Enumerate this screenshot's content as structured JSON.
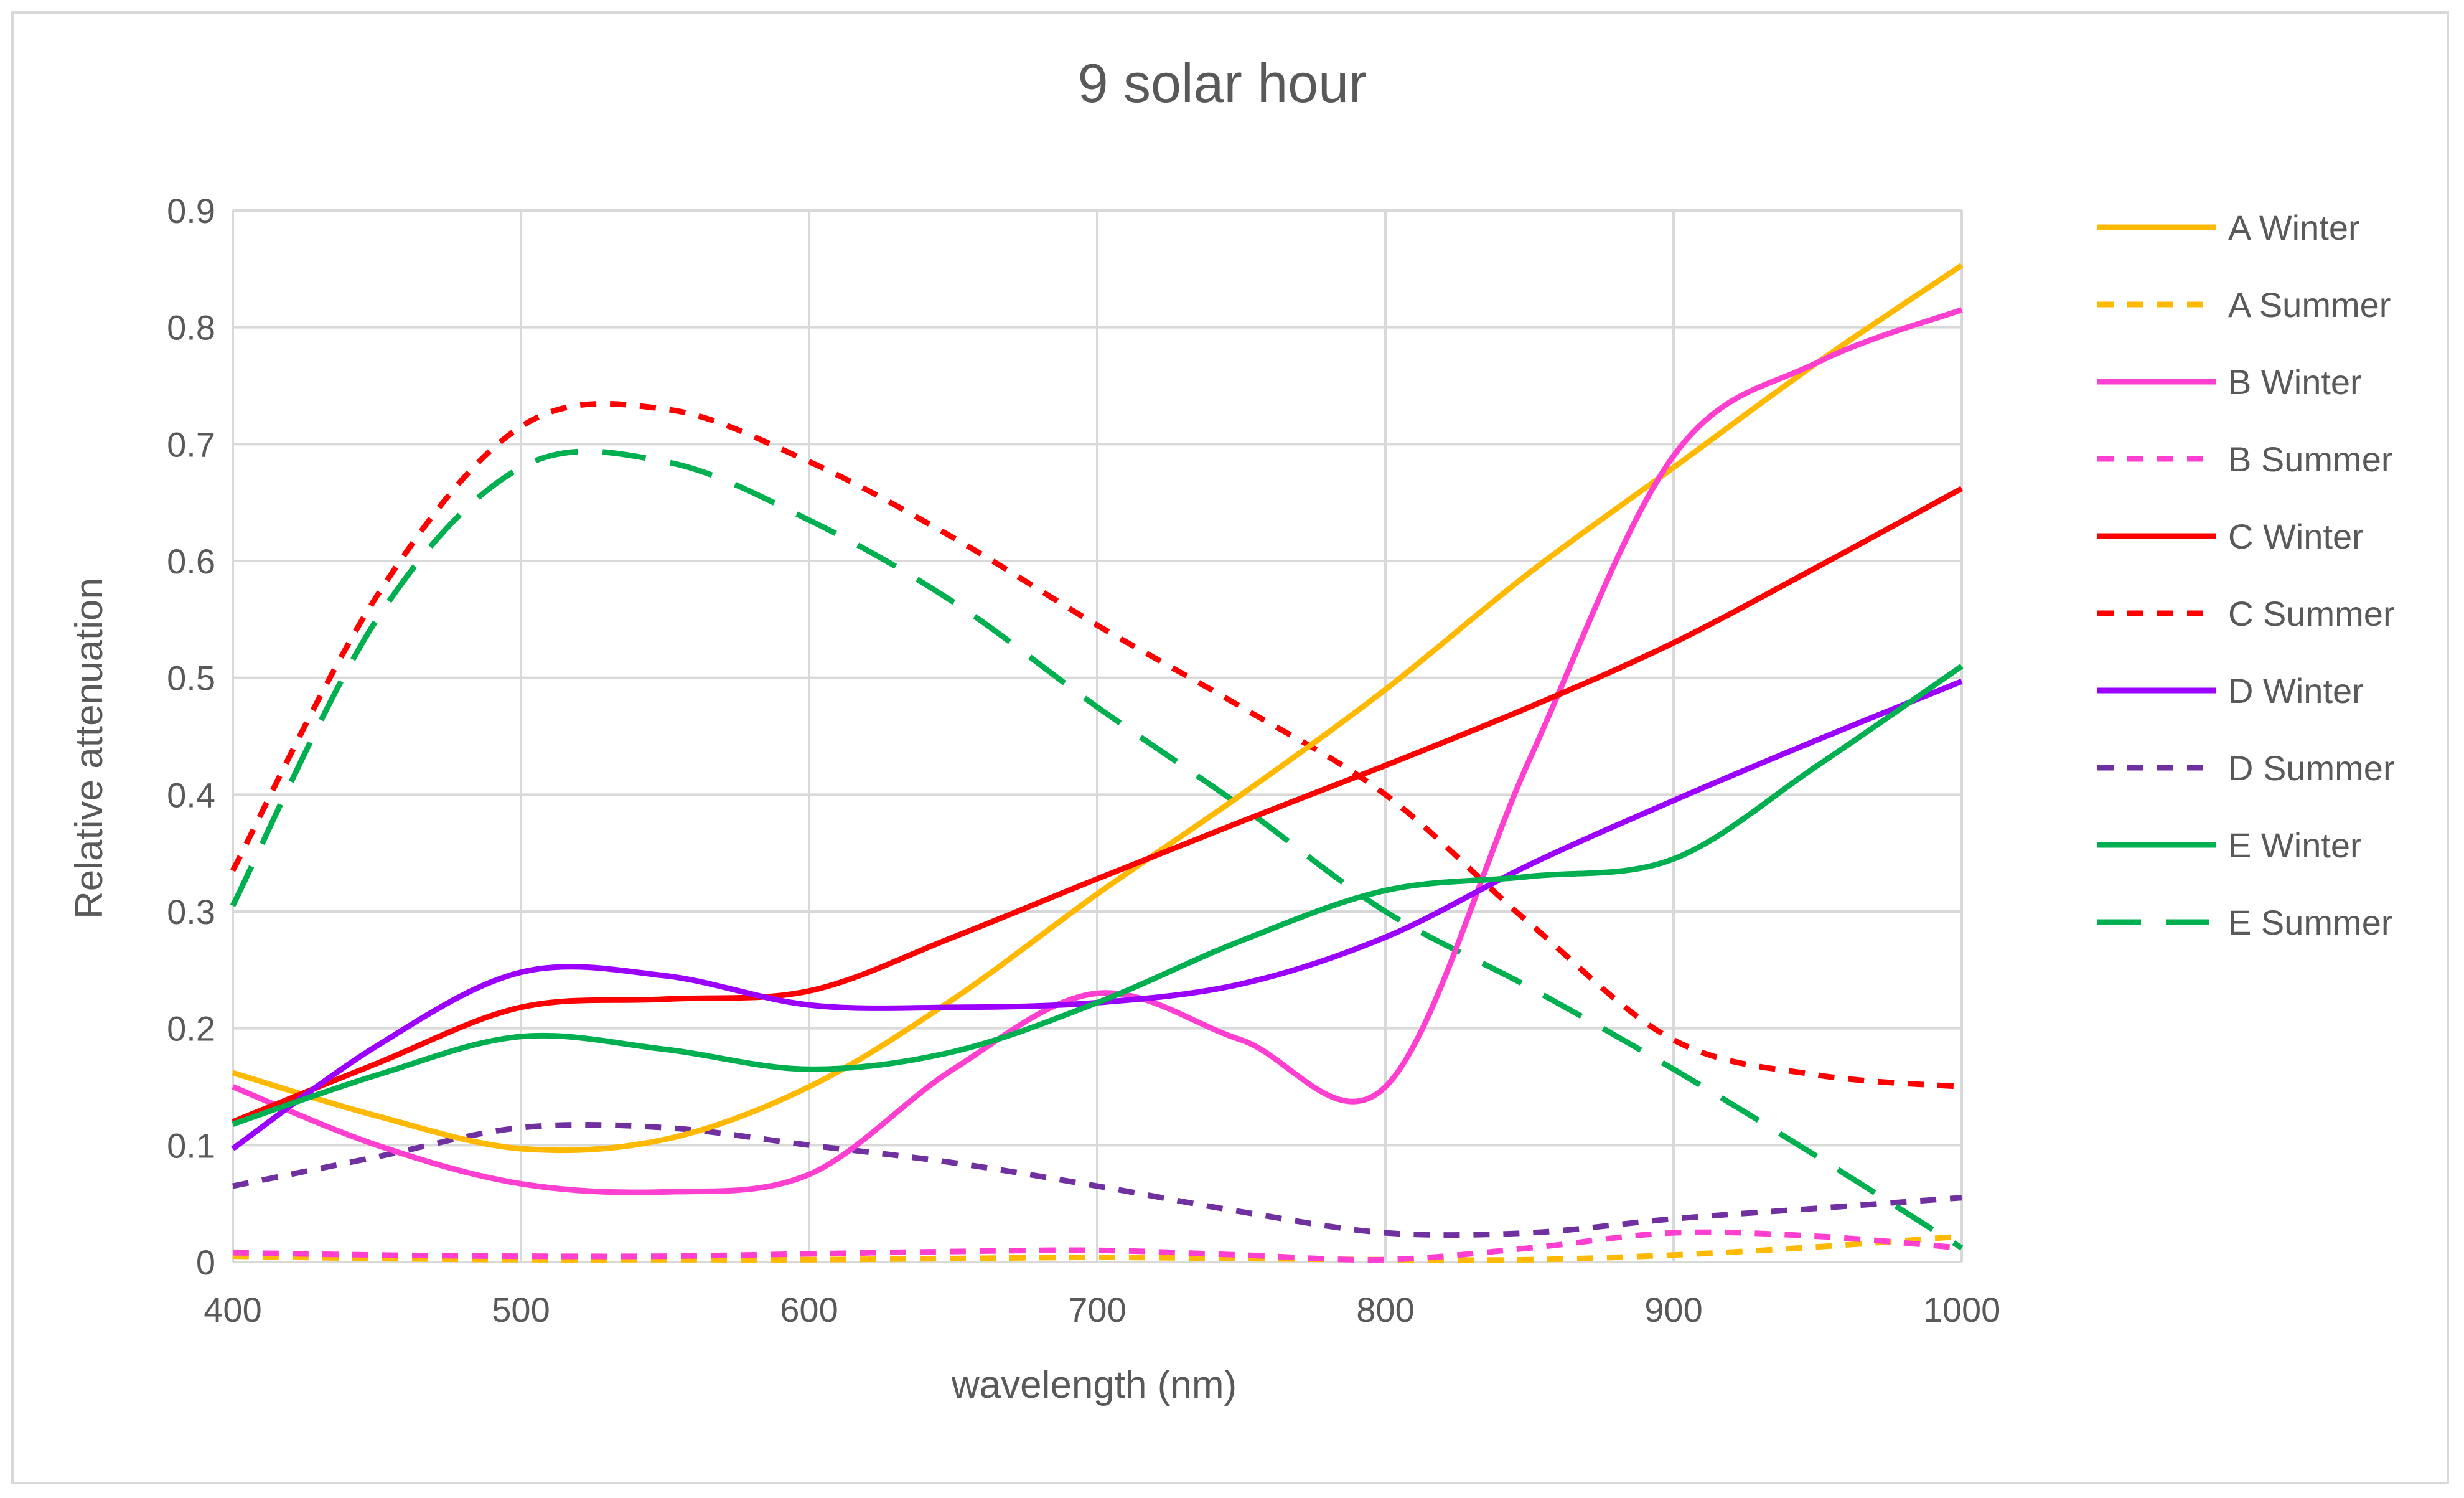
{
  "chart_data": {
    "type": "line",
    "title": "9 solar hour",
    "xlabel": "wavelength (nm)",
    "ylabel": "Relative attenuation",
    "xlim": [
      400,
      1000
    ],
    "ylim": [
      0,
      0.9
    ],
    "x_ticks": [
      400,
      500,
      600,
      700,
      800,
      900,
      1000
    ],
    "y_ticks": [
      0,
      0.1,
      0.2,
      0.3,
      0.4,
      0.5,
      0.6,
      0.7,
      0.8,
      0.9
    ],
    "y_tick_labels": [
      "0",
      "0.1",
      "0.2",
      "0.3",
      "0.4",
      "0.5",
      "0.6",
      "0.7",
      "0.8",
      "0.9"
    ],
    "grid": true,
    "legend_position": "right",
    "x": [
      400,
      450,
      500,
      550,
      600,
      650,
      700,
      750,
      800,
      850,
      900,
      950,
      1000
    ],
    "series": [
      {
        "name": "A Winter",
        "color": "#ffb900",
        "dash": "solid",
        "values": [
          0.162,
          0.125,
          0.097,
          0.105,
          0.15,
          0.225,
          0.315,
          0.4,
          0.49,
          0.59,
          0.68,
          0.77,
          0.853
        ]
      },
      {
        "name": "A Summer",
        "color": "#ffb900",
        "dash": "short",
        "values": [
          0.005,
          0.003,
          0.002,
          0.002,
          0.002,
          0.003,
          0.004,
          0.003,
          0.002,
          0.002,
          0.006,
          0.013,
          0.022
        ]
      },
      {
        "name": "B Winter",
        "color": "#ff3fd0",
        "dash": "solid",
        "values": [
          0.15,
          0.1,
          0.067,
          0.06,
          0.075,
          0.165,
          0.23,
          0.19,
          0.15,
          0.43,
          0.69,
          0.77,
          0.815
        ]
      },
      {
        "name": "B Summer",
        "color": "#ff3fd0",
        "dash": "short",
        "values": [
          0.008,
          0.006,
          0.005,
          0.005,
          0.007,
          0.009,
          0.01,
          0.006,
          0.002,
          0.012,
          0.025,
          0.022,
          0.012
        ]
      },
      {
        "name": "C Winter",
        "color": "#ff0000",
        "dash": "solid",
        "values": [
          0.12,
          0.17,
          0.218,
          0.225,
          0.232,
          0.278,
          0.328,
          0.377,
          0.425,
          0.475,
          0.53,
          0.595,
          0.662
        ]
      },
      {
        "name": "C Summer",
        "color": "#ff0000",
        "dash": "short",
        "values": [
          0.335,
          0.57,
          0.715,
          0.73,
          0.685,
          0.62,
          0.545,
          0.475,
          0.4,
          0.29,
          0.19,
          0.16,
          0.15
        ]
      },
      {
        "name": "D Winter",
        "color": "#9b00ff",
        "dash": "solid",
        "values": [
          0.097,
          0.185,
          0.248,
          0.245,
          0.22,
          0.218,
          0.222,
          0.238,
          0.278,
          0.34,
          0.395,
          0.447,
          0.497
        ]
      },
      {
        "name": "D Summer",
        "color": "#7030a0",
        "dash": "short",
        "values": [
          0.065,
          0.09,
          0.115,
          0.115,
          0.1,
          0.085,
          0.065,
          0.043,
          0.025,
          0.025,
          0.037,
          0.046,
          0.055
        ]
      },
      {
        "name": "E Winter",
        "color": "#00b050",
        "dash": "solid",
        "values": [
          0.118,
          0.16,
          0.193,
          0.182,
          0.165,
          0.18,
          0.222,
          0.275,
          0.318,
          0.33,
          0.345,
          0.425,
          0.51
        ]
      },
      {
        "name": "E Summer",
        "color": "#00b050",
        "dash": "long",
        "values": [
          0.305,
          0.55,
          0.68,
          0.685,
          0.635,
          0.565,
          0.475,
          0.39,
          0.3,
          0.235,
          0.165,
          0.09,
          0.012
        ]
      }
    ]
  }
}
